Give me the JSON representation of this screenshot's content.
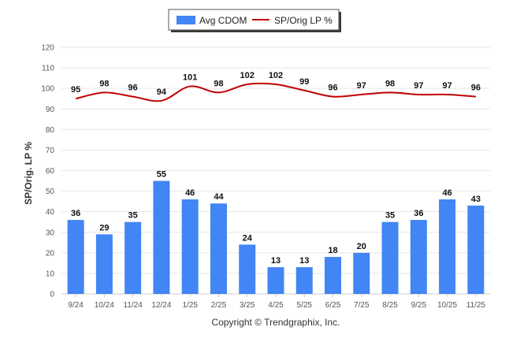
{
  "chart_data": {
    "type": "bar",
    "categories": [
      "9/24",
      "10/24",
      "11/24",
      "12/24",
      "1/25",
      "2/25",
      "3/25",
      "4/25",
      "5/25",
      "6/25",
      "7/25",
      "8/25",
      "9/25",
      "10/25",
      "11/25"
    ],
    "series": [
      {
        "name": "Avg CDOM",
        "type": "bar",
        "color": "#4285f4",
        "values": [
          36,
          29,
          35,
          55,
          46,
          44,
          24,
          13,
          13,
          18,
          20,
          35,
          36,
          46,
          43
        ]
      },
      {
        "name": "SP/Orig LP %",
        "type": "line",
        "color": "#c00000",
        "values": [
          95,
          98,
          96,
          94,
          101,
          98,
          102,
          102,
          99,
          96,
          97,
          98,
          97,
          97,
          96
        ]
      }
    ],
    "ylabel": "SP/Orig. LP %",
    "xlabel": "",
    "ylim": [
      0,
      120
    ],
    "yticks": [
      0,
      10,
      20,
      30,
      40,
      50,
      60,
      70,
      80,
      90,
      100,
      110,
      120
    ],
    "grid": true,
    "legend_position": "top-center"
  },
  "footer": {
    "copyright": "Copyright © Trendgraphix, Inc."
  }
}
